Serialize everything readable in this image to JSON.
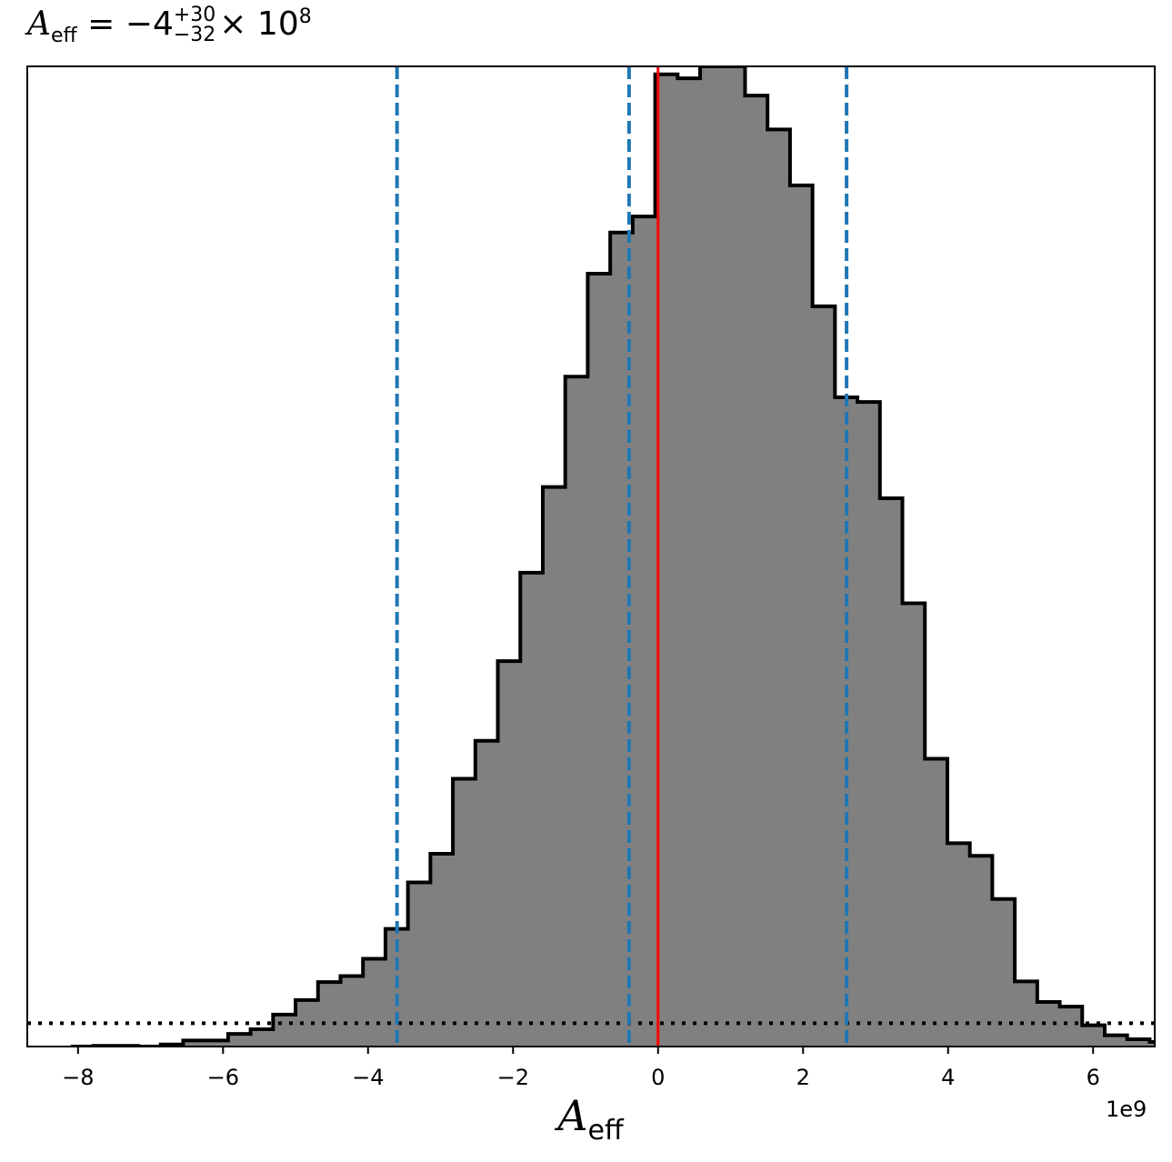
{
  "chart_data": {
    "type": "histogram",
    "title": {
      "symbol": "A",
      "symbol_sub": "eff",
      "equals": "=",
      "value": "−4",
      "upper": "+30",
      "lower": "−32",
      "times": "×",
      "scale": "10",
      "scale_exp": "8"
    },
    "xlabel": {
      "symbol": "A",
      "sub": "eff"
    },
    "x_offset_label": "1e9",
    "xlim": [
      -8700000000.0,
      6850000000.0
    ],
    "xticks": [
      {
        "value": -8000000000.0,
        "label": "−8"
      },
      {
        "value": -6000000000.0,
        "label": "−6"
      },
      {
        "value": -4000000000.0,
        "label": "−4"
      },
      {
        "value": -2000000000.0,
        "label": "−2"
      },
      {
        "value": 0,
        "label": "0"
      },
      {
        "value": 2000000000.0,
        "label": "2"
      },
      {
        "value": 4000000000.0,
        "label": "4"
      },
      {
        "value": 6000000000.0,
        "label": "6"
      }
    ],
    "bins": {
      "start": -8100000000.0,
      "width": 310000000.0,
      "counts": [
        0,
        1,
        1,
        0,
        3,
        9,
        9,
        19,
        26,
        48,
        70,
        97,
        106,
        132,
        177,
        247,
        290,
        403,
        460,
        580,
        713,
        842,
        1008,
        1163,
        1225,
        1249,
        1463,
        1457,
        1475,
        1475,
        1431,
        1380,
        1296,
        1114,
        977,
        970,
        825,
        667,
        433,
        306,
        287,
        222,
        98,
        67,
        60,
        32,
        17,
        11,
        7,
        5,
        3,
        2
      ]
    },
    "ylim": [
      0,
      1475
    ],
    "vlines": [
      {
        "value": -3600000000.0,
        "style": "dashed",
        "color": "#1f77b4"
      },
      {
        "value": -400000000.0,
        "style": "dashed",
        "color": "#1f77b4"
      },
      {
        "value": 2600000000.0,
        "style": "dashed",
        "color": "#1f77b4"
      },
      {
        "value": 0,
        "style": "solid",
        "color": "#ff0000"
      }
    ],
    "hline": {
      "value": 35,
      "style": "dotted",
      "color": "#000000"
    },
    "hist_fill": "#808080",
    "hist_edge": "#000000"
  }
}
